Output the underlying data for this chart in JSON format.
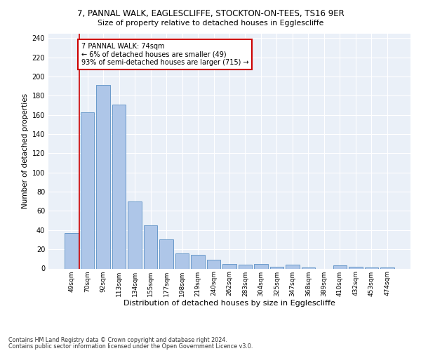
{
  "title1": "7, PANNAL WALK, EAGLESCLIFFE, STOCKTON-ON-TEES, TS16 9ER",
  "title2": "Size of property relative to detached houses in Egglescliffe",
  "xlabel": "Distribution of detached houses by size in Egglescliffe",
  "ylabel": "Number of detached properties",
  "categories": [
    "49sqm",
    "70sqm",
    "92sqm",
    "113sqm",
    "134sqm",
    "155sqm",
    "177sqm",
    "198sqm",
    "219sqm",
    "240sqm",
    "262sqm",
    "283sqm",
    "304sqm",
    "325sqm",
    "347sqm",
    "368sqm",
    "389sqm",
    "410sqm",
    "432sqm",
    "453sqm",
    "474sqm"
  ],
  "values": [
    37,
    163,
    191,
    171,
    70,
    45,
    30,
    16,
    14,
    9,
    5,
    4,
    5,
    2,
    4,
    1,
    0,
    3,
    2,
    1,
    1
  ],
  "bar_color": "#aec6e8",
  "bar_edge_color": "#5a8fc4",
  "vline_color": "#cc0000",
  "annotation_text": "7 PANNAL WALK: 74sqm\n← 6% of detached houses are smaller (49)\n93% of semi-detached houses are larger (715) →",
  "annotation_box_color": "white",
  "annotation_box_edge_color": "#cc0000",
  "footer1": "Contains HM Land Registry data © Crown copyright and database right 2024.",
  "footer2": "Contains public sector information licensed under the Open Government Licence v3.0.",
  "ylim": [
    0,
    245
  ],
  "yticks": [
    0,
    20,
    40,
    60,
    80,
    100,
    120,
    140,
    160,
    180,
    200,
    220,
    240
  ],
  "bg_color": "#eaf0f8",
  "grid_color": "white"
}
